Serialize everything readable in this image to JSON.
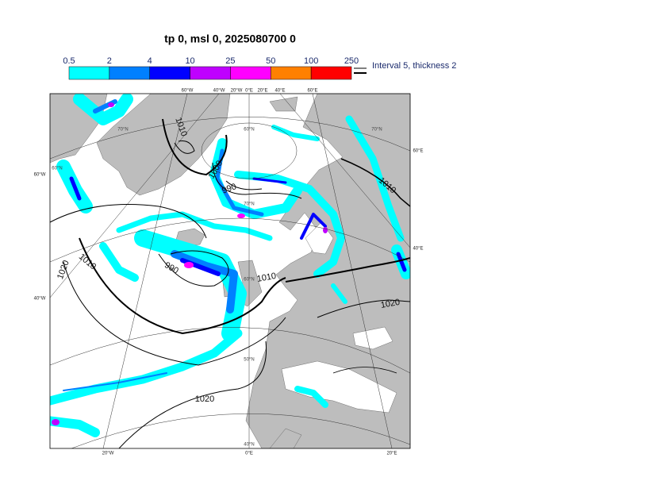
{
  "title": "tp 0, msl 0, 2025080700 0",
  "legend": {
    "levels": [
      0.5,
      2,
      4,
      10,
      25,
      50,
      100,
      250
    ],
    "colors": [
      "#00ffff",
      "#0080ff",
      "#0000ff",
      "#bf00ff",
      "#ff00ff",
      "#ff8000",
      "#ff0000"
    ],
    "note": "Interval 5, thickness 2"
  },
  "map": {
    "edge_labels": [
      "60°W",
      "40°W",
      "20°W",
      "0°E",
      "20°E",
      "40°E",
      "60°E",
      "60°W",
      "40°W",
      "60°E",
      "40°E",
      "20°W",
      "0°E",
      "20°E"
    ],
    "grid_labels": [
      "70°N",
      "70°N",
      "60°N",
      "60°N",
      "70°N",
      "60°N",
      "50°N",
      "40°N"
    ],
    "contour_labels": [
      1010,
      1000,
      990,
      1010,
      1020,
      1010,
      990,
      1010,
      1020,
      1020
    ]
  }
}
